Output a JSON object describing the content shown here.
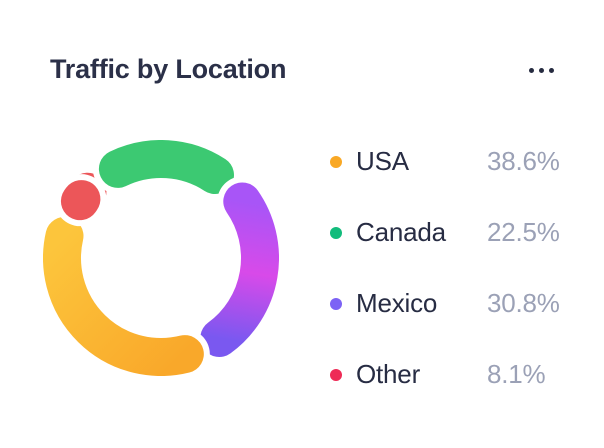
{
  "card": {
    "title": "Traffic by Location",
    "menu_icon": "ellipsis-horizontal"
  },
  "colors": {
    "background": "#ffffff",
    "title_text": "#2b3048",
    "label_text": "#272c43",
    "value_text": "#9ba1b6",
    "menu_dots": "#262b40"
  },
  "chart_data": {
    "type": "donut",
    "title": "Traffic by Location",
    "unit": "%",
    "legend_position": "right",
    "start_angle_deg": 155,
    "clockwise_order": [
      "USA",
      "Other",
      "Canada",
      "Mexico"
    ],
    "draw_order": [
      "Other",
      "Canada",
      "Mexico",
      "USA"
    ],
    "tuck_stub": "Other",
    "segments": [
      {
        "label": "USA",
        "value": 38.6,
        "display": "38.6%",
        "arc_color": [
          "#F9A82A",
          "#FCC53C"
        ],
        "dot_color": "#F9A825"
      },
      {
        "label": "Canada",
        "value": 22.5,
        "display": "22.5%",
        "arc_color": [
          "#3CC972"
        ],
        "dot_color": "#12BC7C"
      },
      {
        "label": "Mexico",
        "value": 30.8,
        "display": "30.8%",
        "arc_color": [
          "#A855F7",
          "#D84AE9",
          "#7A58F0"
        ],
        "dot_color": "#7C62F5"
      },
      {
        "label": "Other",
        "value": 8.1,
        "display": "8.1%",
        "arc_color": [
          "#EC5659"
        ],
        "dot_color": "#EE2B56"
      }
    ]
  }
}
